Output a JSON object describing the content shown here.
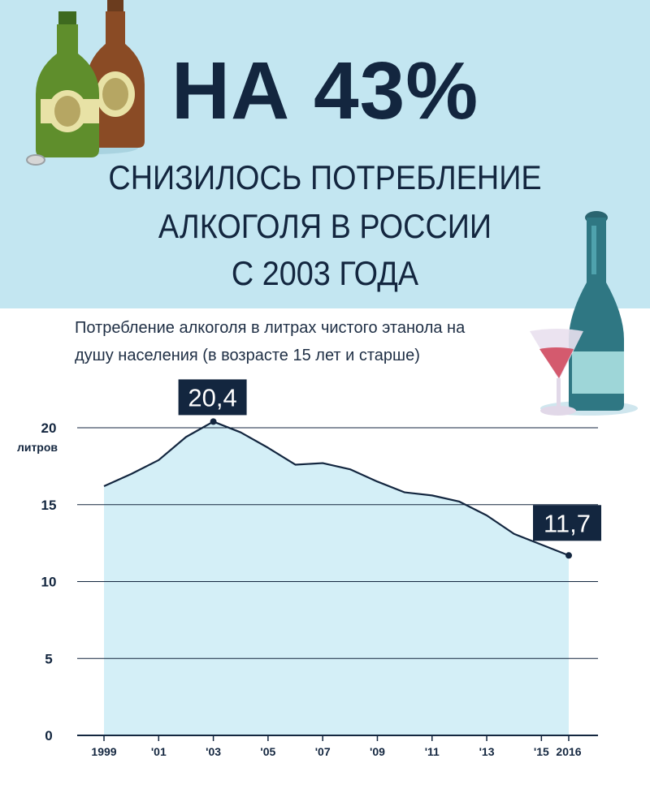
{
  "header": {
    "headline": "НА 43%",
    "subtitle_lines": [
      "СНИЗИЛОСЬ ПОТРЕБЛЕНИЕ",
      "АЛКОГОЛЯ В РОССИИ",
      "С 2003 ГОДА"
    ]
  },
  "chart_caption_lines": [
    "Потребление алкоголя в литрах чистого этанола на",
    "душу населения (в возрасте 15 лет и старше)"
  ],
  "colors": {
    "hero_bg": "#c3e6f1",
    "area_fill": "#d4eff7",
    "line": "#13263f",
    "label_box": "#13263f"
  },
  "chart_data": {
    "type": "area",
    "unit_label": "литров",
    "x": [
      1999,
      2000,
      2001,
      2002,
      2003,
      2004,
      2005,
      2006,
      2007,
      2008,
      2009,
      2010,
      2011,
      2012,
      2013,
      2014,
      2015,
      2016
    ],
    "values": [
      16.2,
      17.0,
      17.9,
      19.4,
      20.4,
      19.7,
      18.7,
      17.6,
      17.7,
      17.3,
      16.5,
      15.8,
      15.6,
      15.2,
      14.3,
      13.1,
      12.4,
      11.7
    ],
    "ylim": [
      0,
      20
    ],
    "yticks": [
      0,
      5,
      10,
      15,
      20
    ],
    "xtick_labels": [
      {
        "x": 1999,
        "label": "1999"
      },
      {
        "x": 2001,
        "label": "'01"
      },
      {
        "x": 2003,
        "label": "'03"
      },
      {
        "x": 2005,
        "label": "'05"
      },
      {
        "x": 2007,
        "label": "'07"
      },
      {
        "x": 2009,
        "label": "'09"
      },
      {
        "x": 2011,
        "label": "'11"
      },
      {
        "x": 2013,
        "label": "'13"
      },
      {
        "x": 2015,
        "label": "'15"
      },
      {
        "x": 2016,
        "label": "2016"
      }
    ],
    "annotations": [
      {
        "x": 2003,
        "y": 20.4,
        "label": "20,4"
      },
      {
        "x": 2016,
        "y": 11.7,
        "label": "11,7"
      }
    ],
    "grid": true
  }
}
